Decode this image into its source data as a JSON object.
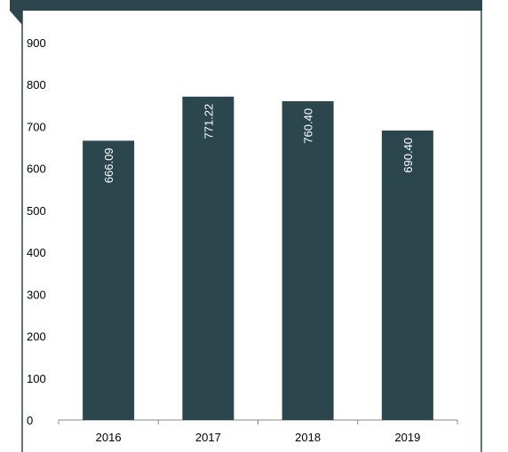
{
  "chart_data": {
    "type": "bar",
    "categories": [
      "2016",
      "2017",
      "2018",
      "2019"
    ],
    "values": [
      666.09,
      771.22,
      760.4,
      690.4
    ],
    "value_labels": [
      "666.09",
      "771.22",
      "760.40",
      "690.40"
    ],
    "ylim": [
      0,
      900
    ],
    "yticks": [
      0,
      100,
      200,
      300,
      400,
      500,
      600,
      700,
      800,
      900
    ],
    "grid": false,
    "legend": "none",
    "colors": {
      "bar": "#2b464d",
      "frame": "#2b464d",
      "axis": "#888888"
    }
  }
}
